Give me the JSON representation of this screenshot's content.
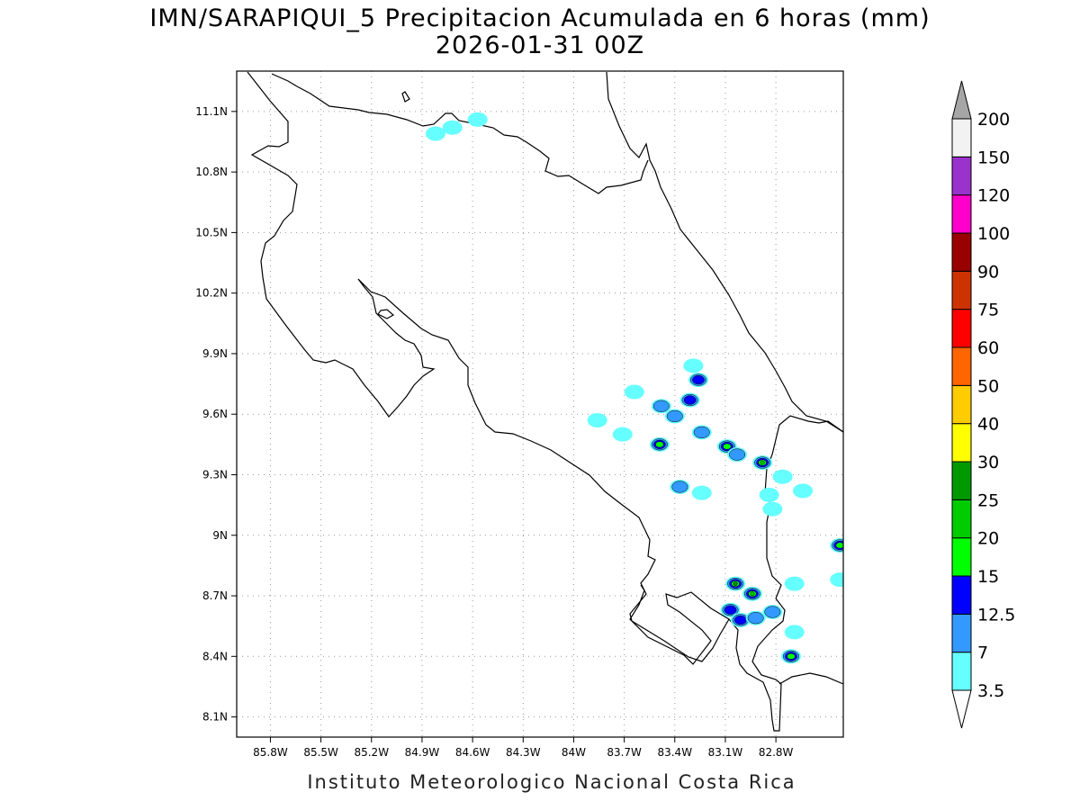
{
  "title": {
    "line1": "IMN/SARAPIQUI_5 Precipitacion Acumulada en 6 horas (mm)",
    "line2": "2026-01-31 00Z"
  },
  "credit": "Instituto Meteorologico Nacional Costa Rica",
  "map": {
    "lon_range": [
      -86.0,
      -82.4
    ],
    "lat_range": [
      8.0,
      11.3
    ],
    "lon_ticks": [
      "85.8W",
      "85.5W",
      "85.2W",
      "84.9W",
      "84.6W",
      "84.3W",
      "84W",
      "83.7W",
      "83.4W",
      "83.1W",
      "82.8W"
    ],
    "lat_ticks": [
      "8.1N",
      "8.4N",
      "8.7N",
      "9N",
      "9.3N",
      "9.6N",
      "9.9N",
      "10.2N",
      "10.5N",
      "10.8N",
      "11.1N"
    ],
    "grid": true
  },
  "colorbar": {
    "levels": [
      "3.5",
      "7",
      "12.5",
      "15",
      "20",
      "25",
      "30",
      "40",
      "50",
      "60",
      "75",
      "90",
      "100",
      "120",
      "150",
      "200"
    ],
    "colors": [
      "#66ffff",
      "#3399ff",
      "#0000ff",
      "#00ff00",
      "#00cc00",
      "#009900",
      "#ffff00",
      "#ffcc00",
      "#ff6600",
      "#ff0000",
      "#cc3300",
      "#990000",
      "#ff00cc",
      "#9933cc",
      "#f2f2f2",
      "#a6a6a6"
    ]
  },
  "precip_cells": [
    {
      "lon": -84.82,
      "lat": 10.99,
      "lvl": 1
    },
    {
      "lon": -84.72,
      "lat": 11.02,
      "lvl": 1
    },
    {
      "lon": -84.57,
      "lat": 11.06,
      "lvl": 1
    },
    {
      "lon": -83.64,
      "lat": 9.71,
      "lvl": 1
    },
    {
      "lon": -83.48,
      "lat": 9.64,
      "lvl": 2
    },
    {
      "lon": -83.31,
      "lat": 9.67,
      "lvl": 3
    },
    {
      "lon": -83.26,
      "lat": 9.77,
      "lvl": 3
    },
    {
      "lon": -83.29,
      "lat": 9.84,
      "lvl": 1
    },
    {
      "lon": -83.4,
      "lat": 9.59,
      "lvl": 2
    },
    {
      "lon": -83.49,
      "lat": 9.45,
      "lvl": 4
    },
    {
      "lon": -83.24,
      "lat": 9.51,
      "lvl": 2
    },
    {
      "lon": -83.09,
      "lat": 9.44,
      "lvl": 4
    },
    {
      "lon": -83.03,
      "lat": 9.4,
      "lvl": 2
    },
    {
      "lon": -82.88,
      "lat": 9.36,
      "lvl": 5
    },
    {
      "lon": -83.37,
      "lat": 9.24,
      "lvl": 2
    },
    {
      "lon": -83.24,
      "lat": 9.21,
      "lvl": 1
    },
    {
      "lon": -82.84,
      "lat": 9.2,
      "lvl": 1
    },
    {
      "lon": -82.76,
      "lat": 9.29,
      "lvl": 1
    },
    {
      "lon": -82.64,
      "lat": 9.22,
      "lvl": 1
    },
    {
      "lon": -82.82,
      "lat": 9.13,
      "lvl": 1
    },
    {
      "lon": -82.42,
      "lat": 8.95,
      "lvl": 4
    },
    {
      "lon": -82.69,
      "lat": 8.76,
      "lvl": 1
    },
    {
      "lon": -82.42,
      "lat": 8.78,
      "lvl": 1
    },
    {
      "lon": -83.04,
      "lat": 8.76,
      "lvl": 6
    },
    {
      "lon": -82.94,
      "lat": 8.71,
      "lvl": 5
    },
    {
      "lon": -83.07,
      "lat": 8.63,
      "lvl": 3
    },
    {
      "lon": -83.01,
      "lat": 8.58,
      "lvl": 3
    },
    {
      "lon": -82.92,
      "lat": 8.59,
      "lvl": 2
    },
    {
      "lon": -82.82,
      "lat": 8.62,
      "lvl": 2
    },
    {
      "lon": -82.71,
      "lat": 8.4,
      "lvl": 4
    },
    {
      "lon": -82.69,
      "lat": 8.52,
      "lvl": 1
    },
    {
      "lon": -83.86,
      "lat": 9.57,
      "lvl": 1
    },
    {
      "lon": -83.71,
      "lat": 9.5,
      "lvl": 1
    }
  ]
}
